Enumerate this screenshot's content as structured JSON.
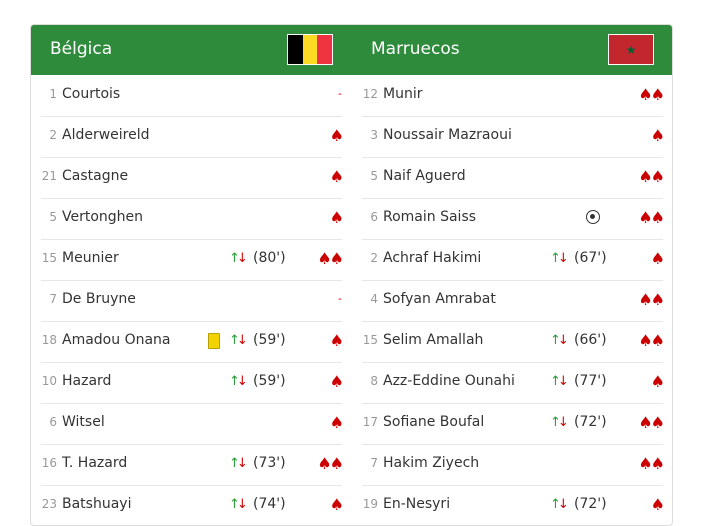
{
  "teams": [
    {
      "name": "Bélgica",
      "players": [
        {
          "number": "1",
          "name": "Courtois",
          "rating": "-"
        },
        {
          "number": "2",
          "name": "Alderweireld",
          "rating": "♠"
        },
        {
          "number": "21",
          "name": "Castagne",
          "rating": "♠"
        },
        {
          "number": "5",
          "name": "Vertonghen",
          "rating": "♠"
        },
        {
          "number": "15",
          "name": "Meunier",
          "sub": "(80')",
          "rating": "♠♠"
        },
        {
          "number": "7",
          "name": "De Bruyne",
          "rating": "-"
        },
        {
          "number": "18",
          "name": "Amadou Onana",
          "card": "yellow",
          "sub": "(59')",
          "rating": "♠"
        },
        {
          "number": "10",
          "name": "Hazard",
          "sub": "(59')",
          "rating": "♠"
        },
        {
          "number": "6",
          "name": "Witsel",
          "rating": "♠"
        },
        {
          "number": "16",
          "name": "T. Hazard",
          "sub": "(73')",
          "rating": "♠♠"
        },
        {
          "number": "23",
          "name": "Batshuayi",
          "sub": "(74')",
          "rating": "♠"
        }
      ]
    },
    {
      "name": "Marruecos",
      "players": [
        {
          "number": "12",
          "name": "Munir",
          "rating": "♠♠"
        },
        {
          "number": "3",
          "name": "Noussair Mazraoui",
          "rating": "♠"
        },
        {
          "number": "5",
          "name": "Naif Aguerd",
          "rating": "♠♠"
        },
        {
          "number": "6",
          "name": "Romain Saiss",
          "goal": true,
          "rating": "♠♠"
        },
        {
          "number": "2",
          "name": "Achraf Hakimi",
          "sub": "(67')",
          "rating": "♠"
        },
        {
          "number": "4",
          "name": "Sofyan Amrabat",
          "rating": "♠♠"
        },
        {
          "number": "15",
          "name": "Selim Amallah",
          "sub": "(66')",
          "rating": "♠♠"
        },
        {
          "number": "8",
          "name": "Azz-Eddine Ounahi",
          "sub": "(77')",
          "rating": "♠"
        },
        {
          "number": "17",
          "name": "Sofiane Boufal",
          "sub": "(72')",
          "rating": "♠♠"
        },
        {
          "number": "7",
          "name": "Hakim Ziyech",
          "rating": "♠♠"
        },
        {
          "number": "19",
          "name": "En-Nesyri",
          "sub": "(72')",
          "rating": "♠"
        }
      ]
    }
  ]
}
